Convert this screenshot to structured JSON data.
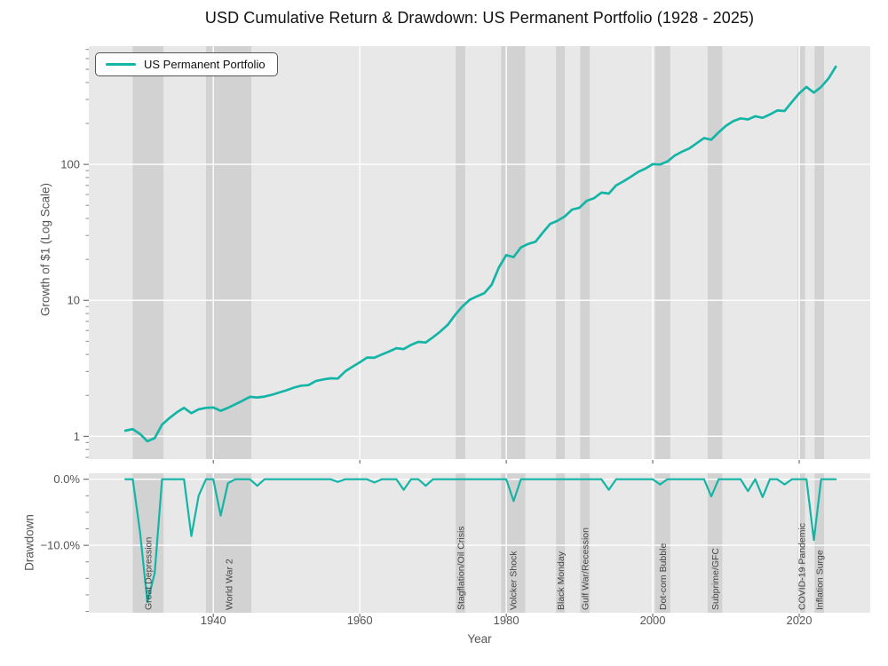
{
  "colors": {
    "line": "#14b5a6",
    "panel_bg": "#e8e8e8",
    "event_band": "#d2d2d2",
    "grid": "#ffffff",
    "tick_text": "#555555",
    "event_text": "#444444",
    "title_text": "#111111"
  },
  "chart_data": {
    "type": "line",
    "title": "USD Cumulative Return & Drawdown: US Permanent Portfolio (1928 - 2025)",
    "xlabel": "Year",
    "xlim": [
      1923,
      2029.7
    ],
    "x_ticks": [
      1940,
      1960,
      1980,
      2000,
      2020
    ],
    "x_tick_labels": [
      "1940",
      "1960",
      "1980",
      "2000",
      "2020"
    ],
    "legend_position": "upper-left",
    "grid": true,
    "panels": [
      {
        "id": "growth",
        "ylabel": "Growth of $1 (Log Scale)",
        "yscale": "log",
        "ylim": [
          0.68,
          740
        ],
        "y_ticks": [
          1,
          10,
          100
        ],
        "y_tick_labels": [
          "1",
          "10",
          "100"
        ],
        "y_minor_ticks": [
          0.7,
          0.8,
          0.9,
          2,
          3,
          4,
          5,
          6,
          7,
          8,
          9,
          20,
          30,
          40,
          50,
          60,
          70,
          80,
          90,
          200,
          300,
          400,
          500,
          600,
          700
        ]
      },
      {
        "id": "drawdown",
        "ylabel": "Drawdown",
        "yscale": "linear",
        "ylim": [
          -20.2,
          0.9
        ],
        "y_ticks": [
          0,
          -10
        ],
        "y_tick_labels": [
          "0.0%",
          "−10.0%"
        ],
        "y_minor_ticks": [
          -2.5,
          -5,
          -7.5,
          -12.5,
          -15,
          -17.5,
          -20
        ]
      }
    ],
    "series": {
      "name": "US Permanent Portfolio",
      "years": [
        1928,
        1929,
        1930,
        1931,
        1932,
        1933,
        1934,
        1935,
        1936,
        1937,
        1938,
        1939,
        1940,
        1941,
        1942,
        1943,
        1944,
        1945,
        1946,
        1947,
        1948,
        1949,
        1950,
        1951,
        1952,
        1953,
        1954,
        1955,
        1956,
        1957,
        1958,
        1959,
        1960,
        1961,
        1962,
        1963,
        1964,
        1965,
        1966,
        1967,
        1968,
        1969,
        1970,
        1971,
        1972,
        1973,
        1974,
        1975,
        1976,
        1977,
        1978,
        1979,
        1980,
        1981,
        1982,
        1983,
        1984,
        1985,
        1986,
        1987,
        1988,
        1989,
        1990,
        1991,
        1992,
        1993,
        1994,
        1995,
        1996,
        1997,
        1998,
        1999,
        2000,
        2001,
        2002,
        2003,
        2004,
        2005,
        2006,
        2007,
        2008,
        2009,
        2010,
        2011,
        2012,
        2013,
        2014,
        2015,
        2016,
        2017,
        2018,
        2019,
        2020,
        2021,
        2022,
        2023,
        2024,
        2025
      ],
      "growth_of_dollar": [
        1.1,
        1.13,
        1.04,
        0.92,
        0.97,
        1.22,
        1.36,
        1.5,
        1.62,
        1.48,
        1.58,
        1.62,
        1.63,
        1.54,
        1.62,
        1.72,
        1.83,
        1.95,
        1.93,
        1.96,
        2.02,
        2.1,
        2.18,
        2.28,
        2.36,
        2.38,
        2.55,
        2.62,
        2.67,
        2.66,
        3.0,
        3.25,
        3.5,
        3.8,
        3.78,
        4.0,
        4.2,
        4.45,
        4.38,
        4.7,
        4.95,
        4.9,
        5.35,
        5.9,
        6.6,
        7.8,
        9.0,
        10.1,
        10.7,
        11.3,
        13.0,
        17.5,
        21.5,
        20.8,
        24.5,
        26.0,
        27.0,
        31.5,
        36.5,
        38.5,
        41.5,
        46.5,
        48.0,
        54.0,
        56.5,
        62.0,
        61.0,
        70.0,
        75.0,
        81.0,
        88.0,
        93.0,
        100.5,
        99.7,
        105,
        116,
        124,
        131,
        143,
        156,
        152,
        172,
        192,
        208,
        218,
        214,
        226,
        220,
        233,
        249,
        247,
        288,
        333,
        371,
        337,
        371,
        428,
        523
      ],
      "drawdown_pct": [
        0,
        0,
        -8.0,
        -18.6,
        -14.2,
        0,
        0,
        0,
        0,
        -8.6,
        -2.5,
        0,
        0,
        -5.5,
        -0.6,
        0,
        0,
        0,
        -1.0,
        0,
        0,
        0,
        0,
        0,
        0,
        0,
        0,
        0,
        0,
        -0.4,
        0,
        0,
        0,
        0,
        -0.5,
        0,
        0,
        0,
        -1.6,
        0,
        0,
        -1.0,
        0,
        0,
        0,
        0,
        0,
        0,
        0,
        0,
        0,
        0,
        0,
        -3.3,
        0,
        0,
        0,
        0,
        0,
        0,
        0,
        0,
        0,
        0,
        0,
        0,
        -1.6,
        0,
        0,
        0,
        0,
        0,
        0,
        -0.8,
        0,
        0,
        0,
        0,
        0,
        0,
        -2.6,
        0,
        0,
        0,
        0,
        -1.8,
        0,
        -2.7,
        0,
        0,
        -0.8,
        0,
        0,
        0,
        -9.2,
        0,
        0,
        0
      ]
    },
    "events": [
      {
        "label": "Great Depression",
        "start": 1929.0,
        "end": 1933.2
      },
      {
        "label": "World War 2",
        "start": 1939.0,
        "end": 1945.2
      },
      {
        "label": "Stagflation/Oil Crisis",
        "start": 1973.1,
        "end": 1974.4
      },
      {
        "label": "Volcker Shock",
        "start": 1979.3,
        "end": 1982.6
      },
      {
        "label": "Black Monday",
        "start": 1986.8,
        "end": 1988.0
      },
      {
        "label": "Gulf War/Recession",
        "start": 1990.1,
        "end": 1991.4
      },
      {
        "label": "Dot-com Bubble",
        "start": 2000.3,
        "end": 2002.4
      },
      {
        "label": "Subprime/GFC",
        "start": 2007.5,
        "end": 2009.5
      },
      {
        "label": "COVID-19 Pandemic",
        "start": 2019.8,
        "end": 2020.8
      },
      {
        "label": "Inflation Surge",
        "start": 2022.1,
        "end": 2023.4
      }
    ]
  }
}
